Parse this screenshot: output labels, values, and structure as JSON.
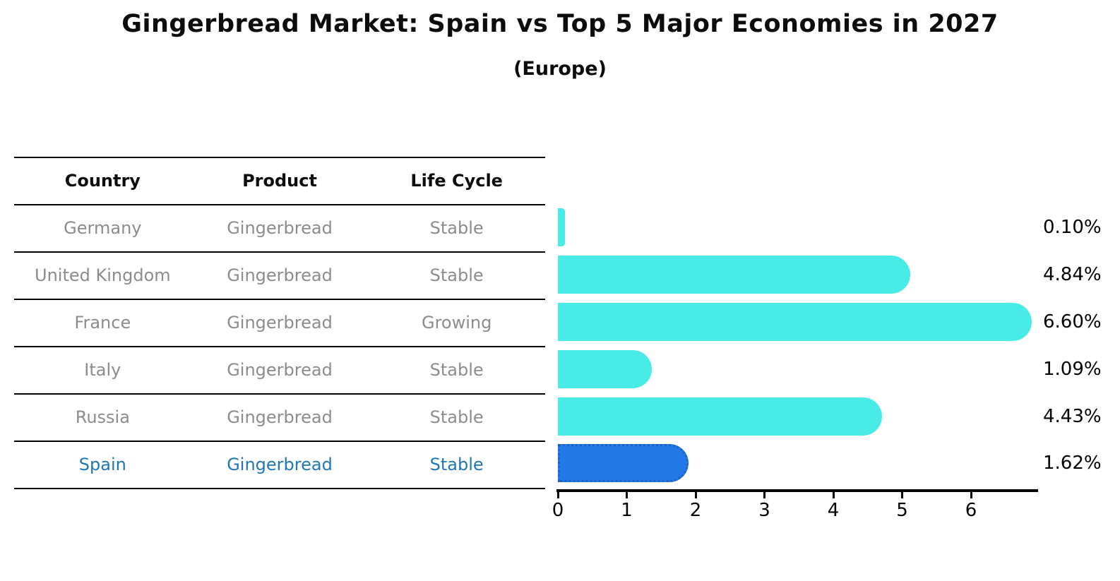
{
  "header": {
    "title": "Gingerbread Market: Spain vs Top 5 Major Economies in 2027",
    "subtitle": "(Europe)"
  },
  "table": {
    "columns": [
      "Country",
      "Product",
      "Life Cycle"
    ],
    "rows": [
      {
        "country": "Germany",
        "product": "Gingerbread",
        "life_cycle": "Stable",
        "highlight": false
      },
      {
        "country": "United Kingdom",
        "product": "Gingerbread",
        "life_cycle": "Stable",
        "highlight": false
      },
      {
        "country": "France",
        "product": "Gingerbread",
        "life_cycle": "Growing",
        "highlight": false
      },
      {
        "country": "Italy",
        "product": "Gingerbread",
        "life_cycle": "Stable",
        "highlight": false
      },
      {
        "country": "Russia",
        "product": "Gingerbread",
        "life_cycle": "Stable",
        "highlight": true
      },
      {
        "country": "Spain",
        "product": "Gingerbread",
        "life_cycle": "Stable",
        "highlight": true
      }
    ]
  },
  "chart_data": {
    "type": "bar",
    "orientation": "horizontal",
    "title": "Gingerbread Market: Spain vs Top 5 Major Economies in 2027",
    "subtitle": "(Europe)",
    "categories": [
      "Germany",
      "United Kingdom",
      "France",
      "Italy",
      "Russia",
      "Spain"
    ],
    "values": [
      0.1,
      4.84,
      6.6,
      1.09,
      4.43,
      1.62
    ],
    "value_labels": [
      "0.10%",
      "4.84%",
      "6.60%",
      "1.09%",
      "4.43%",
      "1.62%"
    ],
    "series_products": [
      "Gingerbread",
      "Gingerbread",
      "Gingerbread",
      "Gingerbread",
      "Gingerbread",
      "Gingerbread"
    ],
    "life_cycles": [
      "Stable",
      "Stable",
      "Growing",
      "Stable",
      "Stable",
      "Stable"
    ],
    "xticks": [
      "0",
      "1",
      "2",
      "3",
      "4",
      "5",
      "6"
    ],
    "xlim": [
      0,
      7
    ],
    "grid": false,
    "legend": "none",
    "highlight_category": "Spain",
    "colors": {
      "bar_default": "#49EBE7",
      "bar_highlight_fill": "#2379E7",
      "bar_highlight_border": "#1E62C8",
      "highlight_text": "#1F77B4",
      "table_text": "#8C8C8C",
      "axis_text": "#000000"
    }
  }
}
